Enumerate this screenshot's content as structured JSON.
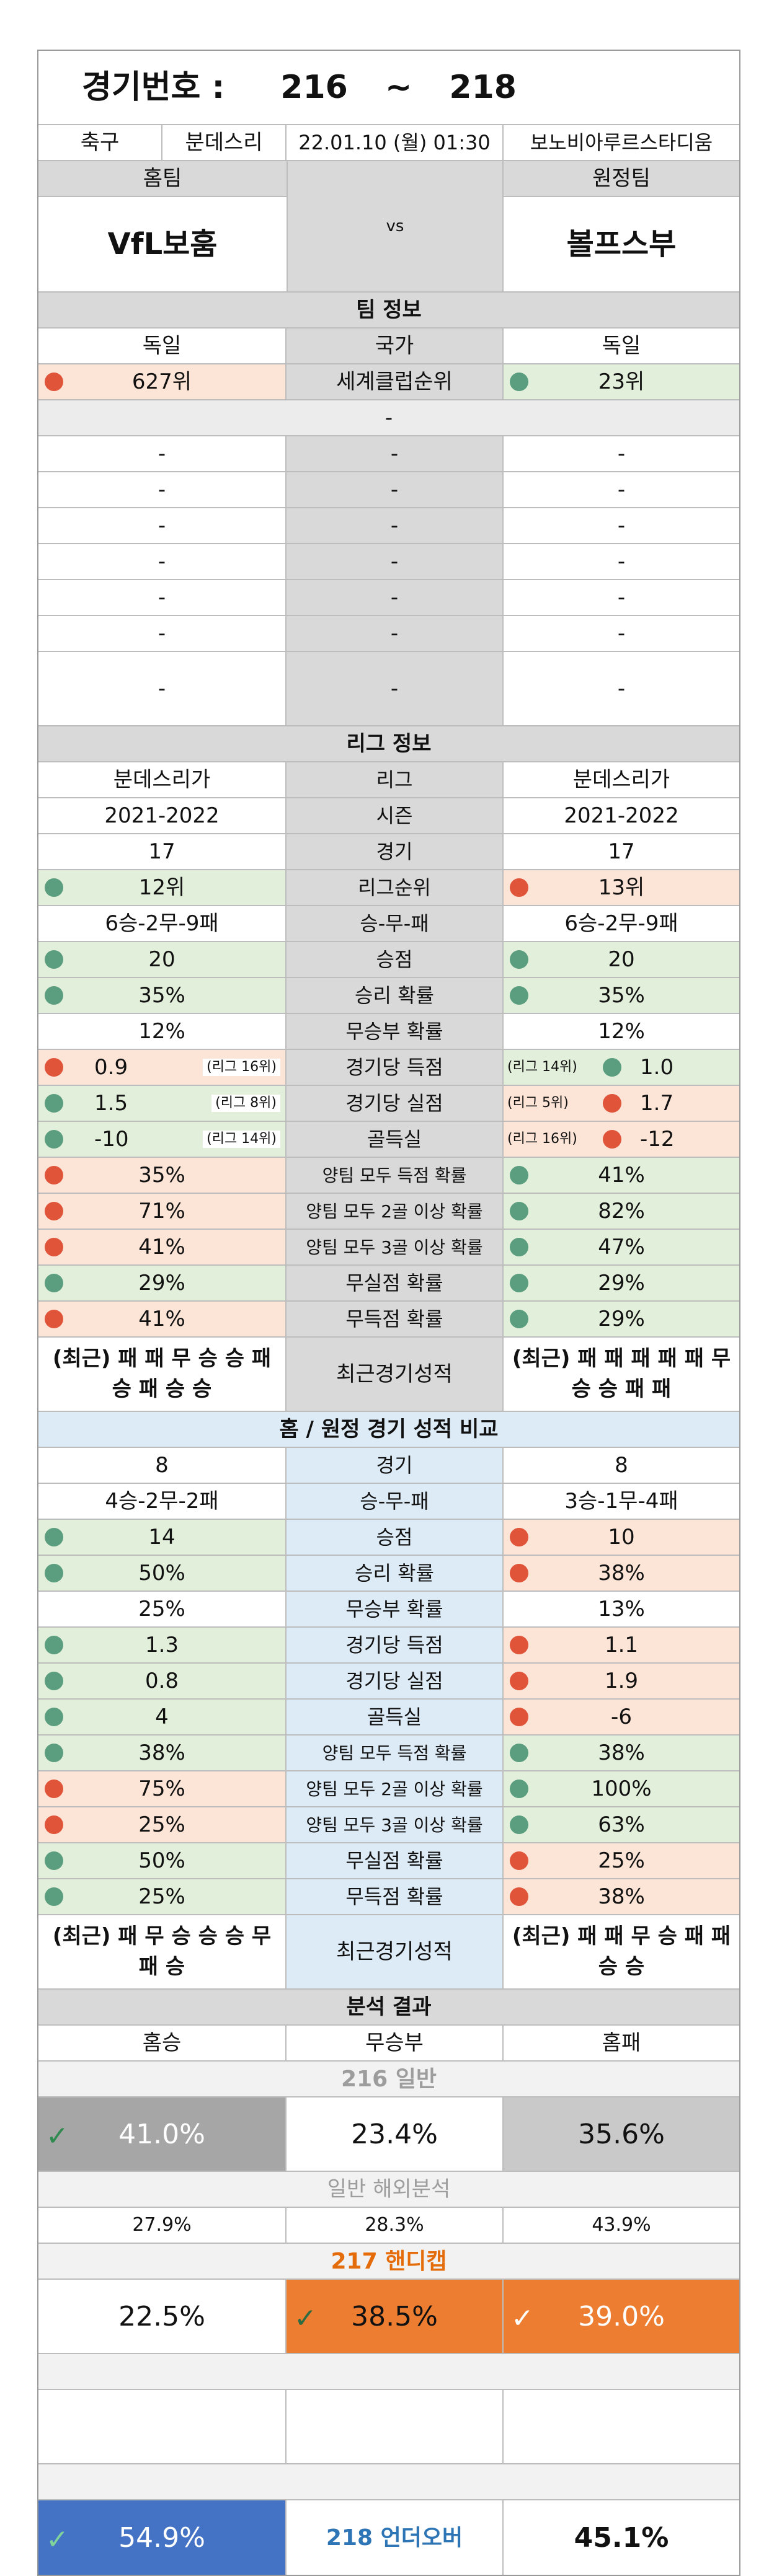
{
  "header": {
    "label": "경기번호 :",
    "from": "216",
    "tilde": "~",
    "to": "218",
    "sport": "축구",
    "league": "분데스리",
    "datetime": "22.01.10 (월) 01:30",
    "stadium": "보노비아루르스타디움",
    "home_label": "홈팀",
    "away_label": "원정팀",
    "home_team": "VfL보훔",
    "vs": "vs",
    "away_team": "볼프스부"
  },
  "team_info": {
    "title": "팀 정보",
    "home_country": "독일",
    "country_label": "국가",
    "away_country": "독일",
    "home_world_rank": "627위",
    "world_rank_label": "세계클럽순위",
    "away_world_rank": "23위",
    "single_dash": "-",
    "dash_rows": [
      [
        "-",
        "-",
        "-"
      ],
      [
        "-",
        "-",
        "-"
      ],
      [
        "-",
        "-",
        "-"
      ],
      [
        "-",
        "-",
        "-"
      ],
      [
        "-",
        "-",
        "-"
      ],
      [
        "-",
        "-",
        "-"
      ],
      [
        "-",
        "-",
        "-"
      ]
    ]
  },
  "league_info": {
    "title": "리그 정보",
    "rows": [
      {
        "home": "분데스리가",
        "label": "리그",
        "away": "분데스리가"
      },
      {
        "home": "2021-2022",
        "label": "시즌",
        "away": "2021-2022"
      },
      {
        "home": "17",
        "label": "경기",
        "away": "17"
      },
      {
        "home": "12위",
        "label": "리그순위",
        "away": "13위",
        "hc": "green",
        "ac": "red"
      },
      {
        "home": "6승-2무-9패",
        "label": "승-무-패",
        "away": "6승-2무-9패"
      },
      {
        "home": "20",
        "label": "승점",
        "away": "20",
        "hc": "green",
        "ac": "green"
      },
      {
        "home": "35%",
        "label": "승리 확률",
        "away": "35%",
        "hc": "green",
        "ac": "green"
      },
      {
        "home": "12%",
        "label": "무승부 확률",
        "away": "12%"
      },
      {
        "home": "0.9",
        "home_rank": "(리그 16위)",
        "label": "경기당 득점",
        "away": "1.0",
        "away_rank": "(리그 14위)",
        "hc": "red",
        "ac": "green"
      },
      {
        "home": "1.5",
        "home_rank": "(리그 8위)",
        "label": "경기당 실점",
        "away": "1.7",
        "away_rank": "(리그 5위)",
        "hc": "green",
        "ac": "red"
      },
      {
        "home": "-10",
        "home_rank": "(리그 14위)",
        "label": "골득실",
        "away": "-12",
        "away_rank": "(리그 16위)",
        "hc": "green",
        "ac": "red"
      },
      {
        "home": "35%",
        "label": "양팀 모두 득점 확률",
        "away": "41%",
        "hc": "red",
        "ac": "green"
      },
      {
        "home": "71%",
        "label": "양팀 모두 2골 이상 확률",
        "away": "82%",
        "hc": "red",
        "ac": "green"
      },
      {
        "home": "41%",
        "label": "양팀 모두 3골 이상 확률",
        "away": "47%",
        "hc": "red",
        "ac": "green"
      },
      {
        "home": "29%",
        "label": "무실점 확률",
        "away": "29%",
        "hc": "green",
        "ac": "green"
      },
      {
        "home": "41%",
        "label": "무득점 확률",
        "away": "29%",
        "hc": "red",
        "ac": "green"
      }
    ],
    "recent_label": "최근경기성적",
    "home_recent": "(최근) 패 패 무 승 승 패 승 패 승 승",
    "away_recent": "(최근) 패 패 패 패 패 무 승 승 패 패"
  },
  "homeaway": {
    "title": "홈 / 원정 경기 성적 비교",
    "rows": [
      {
        "home": "8",
        "label": "경기",
        "away": "8"
      },
      {
        "home": "4승-2무-2패",
        "label": "승-무-패",
        "away": "3승-1무-4패"
      },
      {
        "home": "14",
        "label": "승점",
        "away": "10",
        "hc": "green",
        "ac": "red"
      },
      {
        "home": "50%",
        "label": "승리 확률",
        "away": "38%",
        "hc": "green",
        "ac": "red"
      },
      {
        "home": "25%",
        "label": "무승부 확률",
        "away": "13%"
      },
      {
        "home": "1.3",
        "label": "경기당 득점",
        "away": "1.1",
        "hc": "green",
        "ac": "red"
      },
      {
        "home": "0.8",
        "label": "경기당 실점",
        "away": "1.9",
        "hc": "green",
        "ac": "red"
      },
      {
        "home": "4",
        "label": "골득실",
        "away": "-6",
        "hc": "green",
        "ac": "red"
      },
      {
        "home": "38%",
        "label": "양팀 모두 득점 확률",
        "away": "38%",
        "hc": "green",
        "ac": "green"
      },
      {
        "home": "75%",
        "label": "양팀 모두 2골 이상 확률",
        "away": "100%",
        "hc": "red",
        "ac": "green"
      },
      {
        "home": "25%",
        "label": "양팀 모두 3골 이상 확률",
        "away": "63%",
        "hc": "red",
        "ac": "green"
      },
      {
        "home": "50%",
        "label": "무실점 확률",
        "away": "25%",
        "hc": "green",
        "ac": "red"
      },
      {
        "home": "25%",
        "label": "무득점 확률",
        "away": "38%",
        "hc": "green",
        "ac": "red"
      }
    ],
    "recent_label": "최근경기성적",
    "home_recent": "(최근) 패 무 승 승 승 무 패 승",
    "away_recent": "(최근) 패 패 무 승 패 패 승 승"
  },
  "analysis": {
    "title": "분석 결과",
    "home_win": "홈승",
    "draw": "무승부",
    "home_loss": "홈패",
    "general_title": "216 일반",
    "general": [
      "41.0%",
      "23.4%",
      "35.6%"
    ],
    "overseas_title": "일반 해외분석",
    "overseas": [
      "27.9%",
      "28.3%",
      "43.9%"
    ],
    "handicap_title": "217 핸디캡",
    "handicap": [
      "22.5%",
      "38.5%",
      "39.0%"
    ],
    "underover_label": "218 언더오버",
    "underover": [
      "54.9%",
      "45.1%"
    ]
  },
  "colors": {
    "green_bg": "#e2efda",
    "red_bg": "#fce4d6",
    "green_dot": "#5b9e7f",
    "red_dot": "#e0543a",
    "gray_bg": "#d9d9d9",
    "blue_bg": "#ddebf7",
    "orange": "#ed7d31",
    "blue_cell": "#4472c4",
    "check_icon": "check-icon"
  }
}
